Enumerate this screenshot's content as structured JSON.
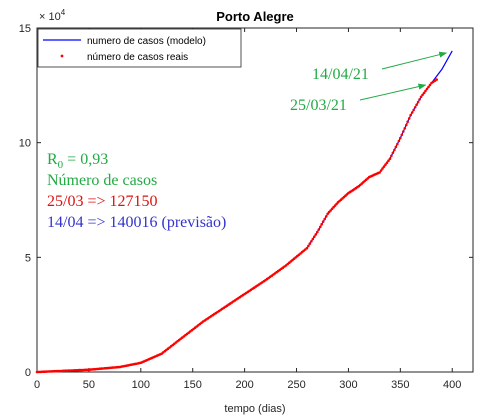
{
  "chart_data": {
    "type": "line",
    "title": "Porto Alegre",
    "xlabel": "tempo (dias)",
    "ylabel": "",
    "y_exponent_label": "× 10",
    "y_exponent_power": "4",
    "xlim": [
      0,
      420
    ],
    "ylim": [
      0,
      15
    ],
    "x_ticks": [
      0,
      50,
      100,
      150,
      200,
      250,
      300,
      350,
      400
    ],
    "y_ticks": [
      0,
      5,
      10,
      15
    ],
    "grid": false,
    "legend_position": "top-left",
    "series": [
      {
        "name": "numero de casos (modelo)",
        "style": "line",
        "color": "#0000ff",
        "x": [
          0,
          50,
          80,
          100,
          120,
          140,
          160,
          180,
          200,
          220,
          240,
          260,
          270,
          280,
          290,
          300,
          310,
          320,
          330,
          340,
          350,
          360,
          370,
          380,
          390,
          400
        ],
        "y": [
          0.0,
          0.1,
          0.22,
          0.4,
          0.8,
          1.5,
          2.2,
          2.8,
          3.4,
          4.0,
          4.65,
          5.4,
          6.1,
          6.9,
          7.4,
          7.8,
          8.1,
          8.5,
          8.7,
          9.3,
          10.2,
          11.2,
          12.0,
          12.6,
          13.2,
          14.0
        ]
      },
      {
        "name": "número de casos reais",
        "style": "points",
        "color": "#ff0000",
        "x": [
          0,
          50,
          80,
          100,
          120,
          140,
          160,
          180,
          200,
          220,
          240,
          260,
          270,
          280,
          290,
          300,
          310,
          320,
          330,
          340,
          350,
          360,
          370,
          380,
          385
        ],
        "y": [
          0.0,
          0.1,
          0.22,
          0.4,
          0.8,
          1.5,
          2.2,
          2.8,
          3.4,
          4.0,
          4.65,
          5.4,
          6.1,
          6.9,
          7.4,
          7.8,
          8.1,
          8.5,
          8.7,
          9.3,
          10.2,
          11.2,
          12.0,
          12.6,
          12.75
        ]
      }
    ],
    "annotations": [
      {
        "text": "14/04/21",
        "color": "#22aa44",
        "point_x": 400,
        "point_y": 14.0
      },
      {
        "text": "25/03/21",
        "color": "#22aa44",
        "point_x": 380,
        "point_y": 12.6
      }
    ],
    "text_block": {
      "r0_label": "R",
      "r0_sub": "0",
      "r0_value": " = 0,93",
      "cases_label": "Número de casos",
      "line_real": "25/03 => 127150",
      "line_forecast": "14/04 => 140016 (previsão)",
      "colors": {
        "green": "#22aa44",
        "red": "#dd1111",
        "blue": "#3333cc"
      }
    }
  }
}
